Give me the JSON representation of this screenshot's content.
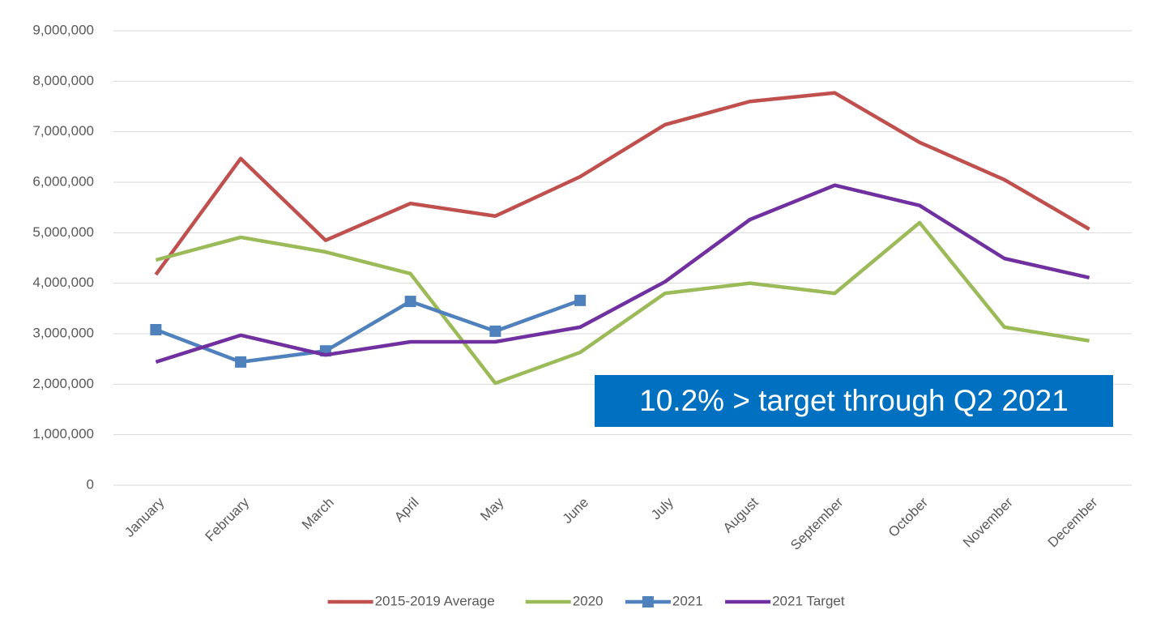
{
  "chart_data": {
    "type": "line",
    "categories": [
      "January",
      "February",
      "March",
      "April",
      "May",
      "June",
      "July",
      "August",
      "September",
      "October",
      "November",
      "December"
    ],
    "series": [
      {
        "name": "2015-2019 Average",
        "color": "#c0504d",
        "values": [
          4170000,
          6470000,
          4850000,
          5580000,
          5330000,
          6110000,
          7140000,
          7600000,
          7770000,
          6790000,
          6050000,
          5070000
        ]
      },
      {
        "name": "2020",
        "color": "#9bbb59",
        "values": [
          4460000,
          4910000,
          4620000,
          4190000,
          2020000,
          2630000,
          3800000,
          4000000,
          3800000,
          5200000,
          3130000,
          2860000
        ]
      },
      {
        "name": "2021",
        "color": "#4f81bd",
        "marker": "square",
        "values": [
          3080000,
          2440000,
          2660000,
          3640000,
          3050000,
          3660000,
          null,
          null,
          null,
          null,
          null,
          null
        ]
      },
      {
        "name": "2021 Target",
        "color": "#7030a0",
        "values": [
          2440000,
          2970000,
          2580000,
          2840000,
          2840000,
          3130000,
          4030000,
          5260000,
          5940000,
          5540000,
          4490000,
          4110000
        ]
      }
    ],
    "ylim": [
      0,
      9000000
    ],
    "yticks": [
      0,
      {
        "value": 1000000,
        "label": "1,000,000"
      },
      {
        "value": 2000000,
        "label": "2,000,000"
      },
      {
        "value": 3000000,
        "label": "3,000,000"
      },
      {
        "value": 4000000,
        "label": "4,000,000"
      },
      {
        "value": 5000000,
        "label": "5,000,000"
      },
      {
        "value": 6000000,
        "label": "6,000,000"
      },
      {
        "value": 7000000,
        "label": "7,000,000"
      },
      {
        "value": 8000000,
        "label": "8,000,000"
      },
      {
        "value": 9000000,
        "label": "9,000,000"
      }
    ],
    "grid": true,
    "legend": "bottom",
    "annotation": {
      "text": "10.2% > target through Q2 2021",
      "color": "#0070c0"
    }
  }
}
